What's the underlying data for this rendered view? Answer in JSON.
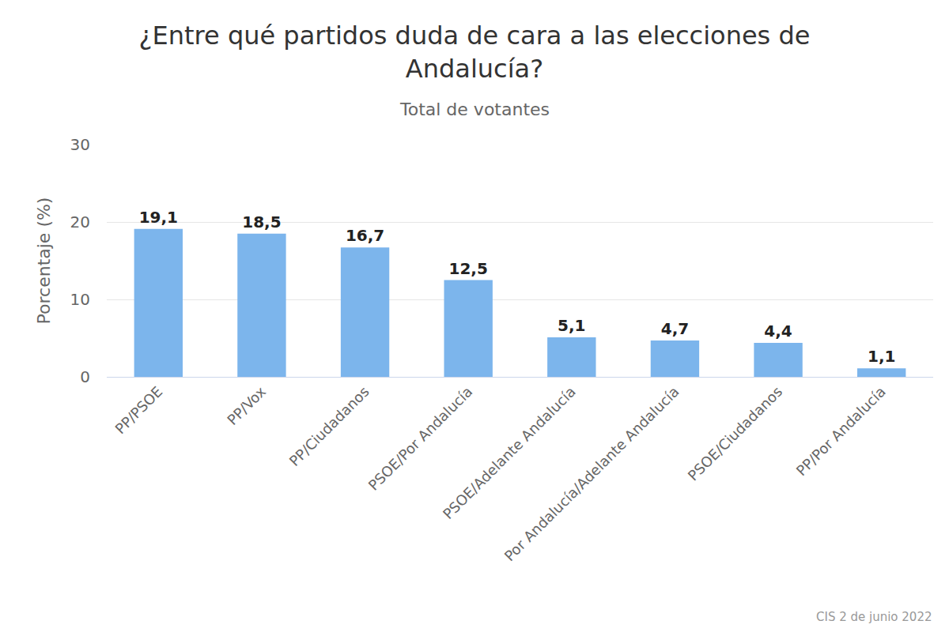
{
  "chart_data": {
    "type": "bar",
    "title": "¿Entre qué partidos duda de cara a las elecciones de Andalucía?",
    "subtitle": "Total de votantes",
    "y_label": "Porcentaje (%)",
    "source": "CIS 2 de junio 2022",
    "categories": [
      "PP/PSOE",
      "PP/Vox",
      "PP/Ciudadanos",
      "PSOE/Por Andalucía",
      "PSOE/Adelante Andalucía",
      "Por Andalucía/Adelante Andalucía",
      "PSOE/Ciudadanos",
      "PP/Por Andalucía"
    ],
    "values": [
      19.1,
      18.5,
      16.7,
      12.5,
      5.1,
      4.7,
      4.4,
      1.1
    ],
    "value_labels": [
      "19,1",
      "18,5",
      "16,7",
      "12,5",
      "5,1",
      "4,7",
      "4,4",
      "1,1"
    ],
    "color": "#7cb5ec",
    "ylim": [
      0,
      30
    ],
    "yticks": [
      0,
      10,
      20,
      30
    ],
    "grid": true,
    "data_labels": true
  }
}
